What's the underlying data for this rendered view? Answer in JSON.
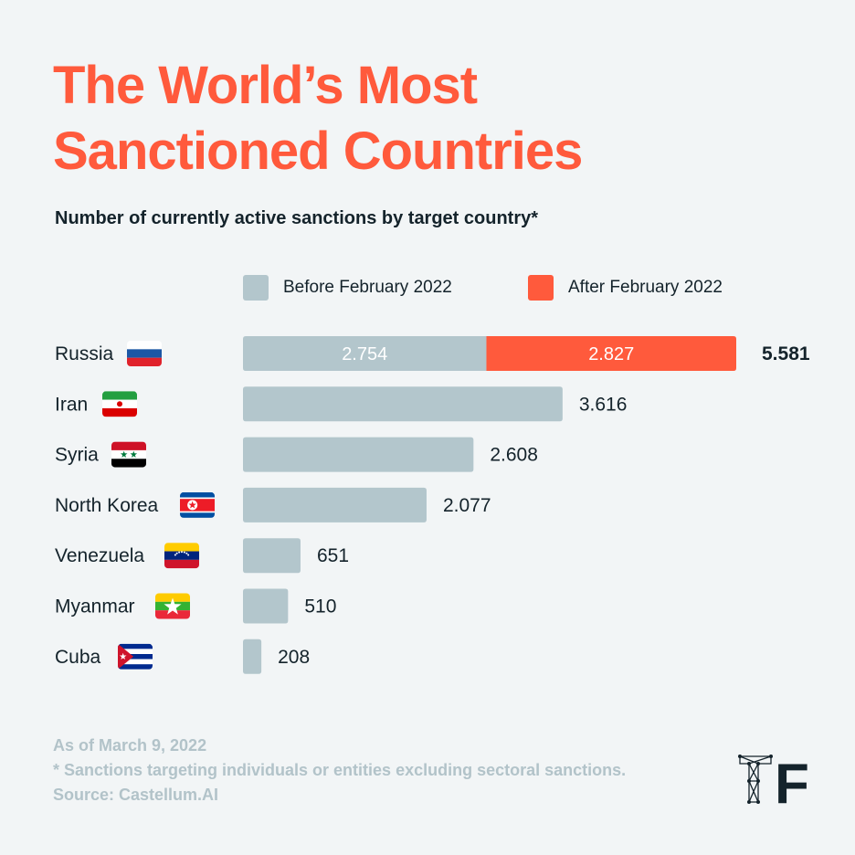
{
  "title": {
    "line1": "The World’s Most",
    "line2": "Sanctioned Countries"
  },
  "subtitle": "Number of currently active sanctions by target country*",
  "legend": [
    {
      "label": "Before February 2022",
      "color": "#b3c6cc"
    },
    {
      "label": "After February 2022",
      "color": "#ff5a3c"
    }
  ],
  "chart_data": {
    "type": "bar",
    "orientation": "horizontal",
    "stacked": true,
    "categories": [
      "Russia",
      "Iran",
      "Syria",
      "North Korea",
      "Venezuela",
      "Myanmar",
      "Cuba"
    ],
    "series": [
      {
        "name": "Before February 2022",
        "values": [
          2754,
          3616,
          2608,
          2077,
          651,
          510,
          208
        ],
        "color": "#b3c6cc"
      },
      {
        "name": "After February 2022",
        "values": [
          2827,
          0,
          0,
          0,
          0,
          0,
          0
        ],
        "color": "#ff5a3c"
      }
    ],
    "value_labels": [
      "5.581",
      "3.616",
      "2.608",
      "2.077",
      "651",
      "510",
      "208"
    ],
    "inner_labels": {
      "Russia": [
        "2.754",
        "2.827"
      ]
    },
    "title": "Number of currently active sanctions by target country*",
    "xlabel": "",
    "ylabel": "",
    "xlim": [
      0,
      5581
    ],
    "grid": false,
    "legend_position": "top"
  },
  "flags": [
    {
      "country": "Russia",
      "icon": "russia-flag-icon",
      "colors": [
        "#ffffff",
        "#1c57a5",
        "#e0222b"
      ]
    },
    {
      "country": "Iran",
      "icon": "iran-flag-icon",
      "colors": [
        "#239f40",
        "#ffffff",
        "#da0000"
      ]
    },
    {
      "country": "Syria",
      "icon": "syria-flag-icon",
      "colors": [
        "#ce1126",
        "#ffffff",
        "#000000",
        "#007a3d"
      ]
    },
    {
      "country": "North Korea",
      "icon": "north-korea-flag-icon",
      "colors": [
        "#024fa2",
        "#ffffff",
        "#ed1c27"
      ]
    },
    {
      "country": "Venezuela",
      "icon": "venezuela-flag-icon",
      "colors": [
        "#ffcc00",
        "#00247d",
        "#cf142b"
      ]
    },
    {
      "country": "Myanmar",
      "icon": "myanmar-flag-icon",
      "colors": [
        "#fecb00",
        "#34b233",
        "#ea2839",
        "#ffffff"
      ]
    },
    {
      "country": "Cuba",
      "icon": "cuba-flag-icon",
      "colors": [
        "#002a8f",
        "#ffffff",
        "#cf142b"
      ]
    }
  ],
  "footer": {
    "date": "As of March 9, 2022",
    "note": "* Sanctions targeting individuals or entities excluding sectoral sanctions.",
    "source": "Source: Castellum.AI"
  },
  "logo": {
    "icon": "brand-logo-icon",
    "letter": "F"
  }
}
